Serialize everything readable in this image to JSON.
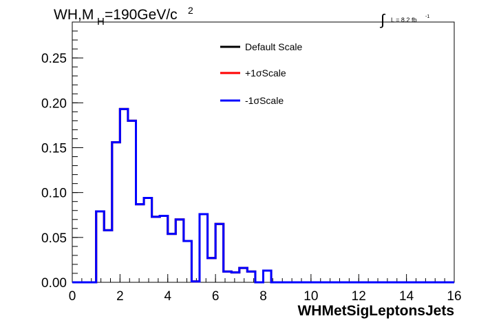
{
  "chart_data": {
    "type": "line",
    "title": {
      "main": "WH,M",
      "subscript": "H",
      "value": "=190GeV/c",
      "superscript": "2"
    },
    "lumi": {
      "integral": "∫",
      "text": "L = 8.2 fb",
      "superscript": "-1"
    },
    "xlabel": "WHMetSigLeptonsJets",
    "ylabel": "",
    "xlim": [
      0,
      16
    ],
    "ylim": [
      0,
      0.29
    ],
    "x_ticks": [
      0,
      2,
      4,
      6,
      8,
      10,
      12,
      14,
      16
    ],
    "x_tick_labels": [
      "0",
      "2",
      "4",
      "6",
      "8",
      "10",
      "12",
      "14",
      "16"
    ],
    "y_ticks": [
      0,
      0.05,
      0.1,
      0.15,
      0.2,
      0.25
    ],
    "y_tick_labels": [
      "0.00",
      "0.05",
      "0.10",
      "0.15",
      "0.20",
      "0.25"
    ],
    "bin_edges": [
      0,
      0.333,
      0.667,
      1.0,
      1.333,
      1.667,
      2.0,
      2.333,
      2.667,
      3.0,
      3.333,
      3.667,
      4.0,
      4.333,
      4.667,
      5.0,
      5.333,
      5.667,
      6.0,
      6.333,
      6.667,
      7.0,
      7.333,
      7.667,
      8.0,
      8.333,
      16.0
    ],
    "series": [
      {
        "name": "Default Scale",
        "color": "#000000",
        "values": [
          0,
          0,
          0,
          0.079,
          0.058,
          0.156,
          0.193,
          0.18,
          0.087,
          0.094,
          0.073,
          0.074,
          0.054,
          0.07,
          0.046,
          0.001,
          0.076,
          0.027,
          0.065,
          0.012,
          0.011,
          0.016,
          0.012,
          0.0,
          0.013,
          0.0
        ]
      },
      {
        "name": "+1σScale",
        "color": "#ff0000",
        "values": [
          0,
          0,
          0,
          0.079,
          0.058,
          0.156,
          0.193,
          0.18,
          0.087,
          0.094,
          0.073,
          0.074,
          0.054,
          0.07,
          0.046,
          0.001,
          0.076,
          0.027,
          0.065,
          0.012,
          0.011,
          0.016,
          0.012,
          0.0,
          0.013,
          0.0
        ]
      },
      {
        "name": "-1σScale",
        "color": "#0000ff",
        "values": [
          0,
          0,
          0,
          0.079,
          0.058,
          0.156,
          0.193,
          0.18,
          0.087,
          0.094,
          0.073,
          0.074,
          0.054,
          0.07,
          0.046,
          0.001,
          0.076,
          0.027,
          0.065,
          0.012,
          0.011,
          0.016,
          0.012,
          0.0,
          0.013,
          0.0
        ]
      }
    ],
    "legend_placement": "top-center",
    "grid": false
  }
}
